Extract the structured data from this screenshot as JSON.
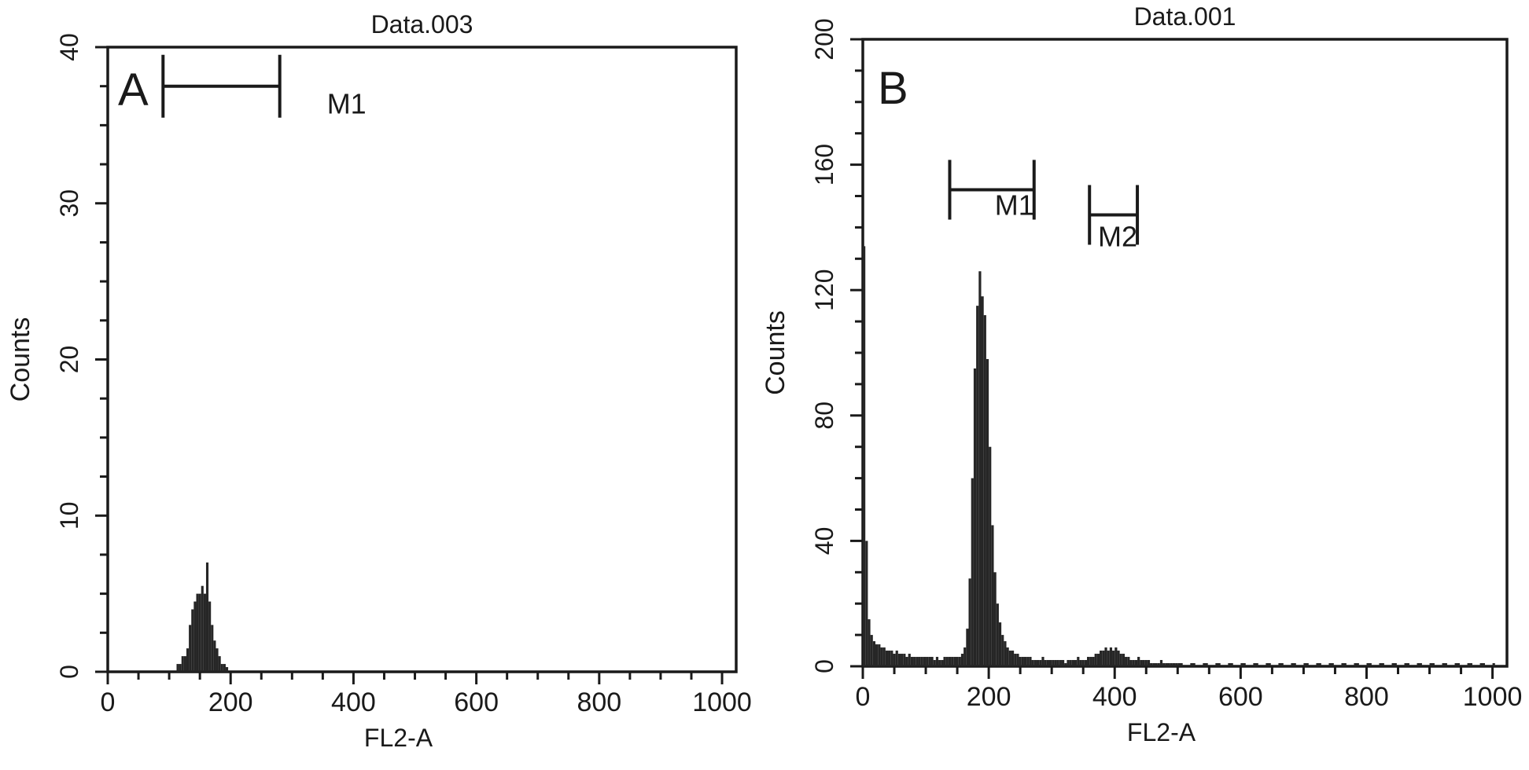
{
  "chart_data": [
    {
      "type": "bar",
      "panel_letter": "A",
      "title": "Data.003",
      "xlabel": "FL2-A",
      "ylabel": "Counts",
      "xlim": [
        0,
        1023
      ],
      "ylim": [
        0,
        40
      ],
      "xticks": [
        "0",
        "200",
        "400",
        "600",
        "800",
        "1000"
      ],
      "yticks": [
        "0",
        "10",
        "20",
        "30",
        "40"
      ],
      "markers": [
        {
          "label": "M1",
          "start": 90,
          "end": 280,
          "level": 37.5
        }
      ],
      "histogram": {
        "x": [
          112,
          116,
          120,
          124,
          128,
          132,
          136,
          140,
          144,
          148,
          152,
          156,
          160,
          164,
          168,
          172,
          176,
          180,
          184,
          188,
          192
        ],
        "counts": [
          0.5,
          0.5,
          1,
          1,
          1.5,
          3,
          4,
          4.5,
          5,
          5,
          5.5,
          5,
          7,
          4.5,
          3,
          2,
          1.5,
          1,
          0.5,
          0.5,
          0.3
        ]
      }
    },
    {
      "type": "bar",
      "panel_letter": "B",
      "title": "Data.001",
      "xlabel": "FL2-A",
      "ylabel": "Counts",
      "xlim": [
        0,
        1023
      ],
      "ylim": [
        0,
        200
      ],
      "xticks": [
        "0",
        "200",
        "400",
        "600",
        "800",
        "1000"
      ],
      "yticks": [
        "0",
        "40",
        "80",
        "120",
        "160",
        "200"
      ],
      "markers": [
        {
          "label": "M1",
          "start": 138,
          "end": 272,
          "level": 152
        },
        {
          "label": "M2",
          "start": 360,
          "end": 436,
          "level": 144
        }
      ],
      "histogram": {
        "x": [
          0,
          4,
          8,
          12,
          16,
          20,
          24,
          28,
          32,
          36,
          40,
          44,
          48,
          52,
          56,
          60,
          64,
          68,
          72,
          76,
          80,
          84,
          88,
          92,
          96,
          100,
          104,
          108,
          112,
          116,
          120,
          124,
          128,
          132,
          136,
          140,
          144,
          148,
          152,
          156,
          160,
          164,
          168,
          172,
          176,
          180,
          184,
          188,
          192,
          196,
          200,
          204,
          208,
          212,
          216,
          220,
          224,
          228,
          232,
          236,
          240,
          244,
          248,
          252,
          256,
          260,
          264,
          268,
          272,
          276,
          280,
          284,
          288,
          292,
          296,
          300,
          304,
          308,
          312,
          316,
          320,
          324,
          328,
          332,
          336,
          340,
          344,
          348,
          352,
          356,
          360,
          364,
          368,
          372,
          376,
          380,
          384,
          388,
          392,
          396,
          400,
          404,
          408,
          412,
          416,
          420,
          424,
          428,
          432,
          436,
          440,
          444,
          448,
          452,
          456,
          460,
          464,
          468,
          472,
          476,
          480,
          484,
          488,
          492,
          496,
          500,
          520,
          540,
          560,
          580,
          600,
          620,
          640,
          660,
          680,
          700,
          720,
          740,
          760,
          780,
          800,
          820,
          840,
          860,
          880,
          900,
          920,
          940,
          960,
          980,
          1000
        ],
        "counts": [
          134,
          40,
          15,
          10,
          8,
          7,
          7,
          6,
          6,
          5,
          5,
          5,
          4,
          5,
          4,
          4,
          4,
          3,
          4,
          3,
          3,
          3,
          3,
          3,
          3,
          3,
          3,
          3,
          2,
          3,
          2,
          2,
          3,
          3,
          3,
          3,
          3,
          3,
          3,
          4,
          6,
          12,
          28,
          60,
          95,
          115,
          126,
          118,
          112,
          98,
          70,
          45,
          30,
          20,
          14,
          10,
          8,
          6,
          5,
          5,
          4,
          4,
          3,
          3,
          3,
          3,
          3,
          2,
          2,
          2,
          2,
          3,
          2,
          2,
          2,
          2,
          2,
          2,
          2,
          2,
          1,
          2,
          2,
          2,
          2,
          3,
          2,
          2,
          2,
          3,
          3,
          3,
          4,
          4,
          5,
          5,
          6,
          5,
          6,
          5,
          6,
          5,
          4,
          4,
          3,
          3,
          2,
          2,
          2,
          3,
          2,
          2,
          2,
          2,
          1,
          1,
          1,
          1,
          2,
          1,
          1,
          1,
          1,
          1,
          1,
          1,
          1,
          1,
          1,
          1,
          1,
          1,
          1,
          1,
          1,
          1,
          1,
          1,
          1,
          1,
          1,
          1,
          1,
          1,
          1,
          1,
          1,
          1,
          1,
          1,
          1
        ]
      }
    }
  ]
}
